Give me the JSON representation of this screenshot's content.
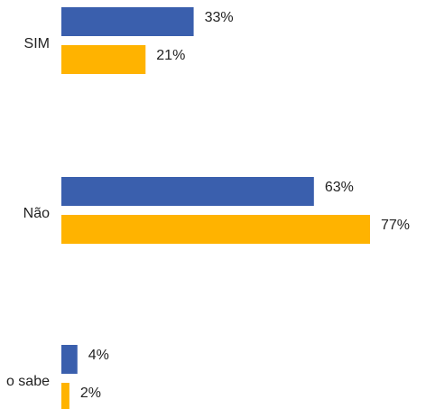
{
  "chart_data": {
    "type": "hbar",
    "categories": [
      "SIM",
      "Não",
      "o sabe"
    ],
    "series": [
      {
        "color": "#3a5fad",
        "values": [
          33,
          63,
          4
        ],
        "value_labels": [
          "33%",
          "63%",
          "4%"
        ]
      },
      {
        "color": "#ffb300",
        "values": [
          21,
          77,
          2
        ],
        "value_labels": [
          "21%",
          "77%",
          "2%"
        ]
      }
    ]
  }
}
